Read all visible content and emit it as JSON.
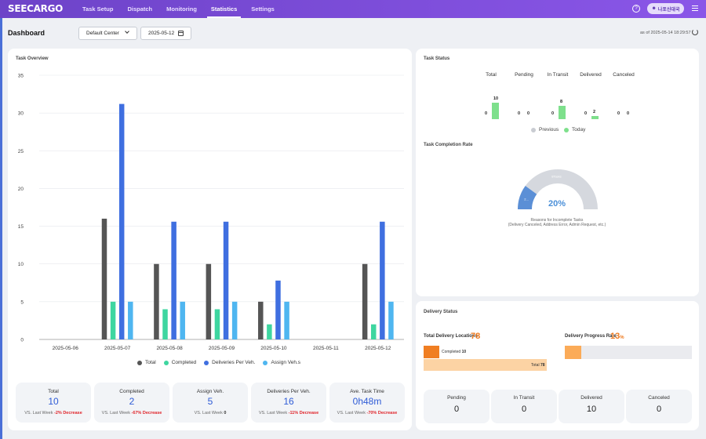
{
  "app": {
    "logo": "SEECARGO"
  },
  "nav": {
    "items": [
      "Task Setup",
      "Dispatch",
      "Monitoring",
      "Statistics",
      "Settings"
    ],
    "active": "Statistics"
  },
  "header": {
    "help_icon": "?",
    "user_label": "나포신대국"
  },
  "toolbar": {
    "title": "Dashboard",
    "center_select": "Default Center",
    "date": "2025-05-12",
    "as_of": "as of 2025-05-14 18:29:57"
  },
  "overview": {
    "title": "Task Overview",
    "legend": [
      "Total",
      "Completed",
      "Deliveries Per Veh.",
      "Assign Veh.s"
    ]
  },
  "chart_data": {
    "type": "bar",
    "title": "Task Overview",
    "categories": [
      "2025-05-06",
      "2025-05-07",
      "2025-05-08",
      "2025-05-09",
      "2025-05-10",
      "2025-05-11",
      "2025-05-12"
    ],
    "series": [
      {
        "name": "Total",
        "color": "#555555",
        "values": [
          0,
          16,
          10,
          10,
          5,
          0,
          10
        ]
      },
      {
        "name": "Completed",
        "color": "#3ed6a0",
        "values": [
          0,
          5,
          4,
          4,
          2,
          0,
          2
        ]
      },
      {
        "name": "Deliveries Per Veh.",
        "color": "#3f6fe0",
        "values": [
          0,
          31.2,
          15.6,
          15.6,
          7.8,
          0,
          15.6
        ]
      },
      {
        "name": "Assign Veh.s",
        "color": "#4fb6f0",
        "values": [
          0,
          5,
          5,
          5,
          5,
          0,
          5
        ]
      }
    ],
    "yticks": [
      0,
      5,
      10,
      15,
      20,
      25,
      30,
      35
    ],
    "ylim": [
      0,
      35
    ],
    "grid": true,
    "legend_position": "bottom"
  },
  "stats": [
    {
      "label": "Total",
      "value": "10",
      "unit": "",
      "cmp_prefix": "VS. Last Week",
      "cmp_value": "-2% Decrease",
      "cmp_red": true
    },
    {
      "label": "Completed",
      "value": "2",
      "unit": "",
      "cmp_prefix": "VS. Last Week",
      "cmp_value": "-67% Decrease",
      "cmp_red": true
    },
    {
      "label": "Assign Veh.",
      "value": "5",
      "unit": "",
      "cmp_prefix": "VS. Last Week",
      "cmp_value": "0",
      "cmp_red": false
    },
    {
      "label": "Deliveries Per Veh.",
      "value": "16",
      "unit": "",
      "cmp_prefix": "VS. Last Week",
      "cmp_value": "-11% Decrease",
      "cmp_red": true
    },
    {
      "label": "Ave. Task Time",
      "value": "0h48m",
      "unit": "",
      "cmp_prefix": "VS. Last Week",
      "cmp_value": "-70% Decrease",
      "cmp_red": true
    }
  ],
  "task_status": {
    "title": "Task Status",
    "columns": [
      {
        "label": "Total",
        "previous": "0",
        "today": "10",
        "today_value": 10
      },
      {
        "label": "Pending",
        "previous": "0",
        "today": "0",
        "today_value": 0
      },
      {
        "label": "In Transit",
        "previous": "0",
        "today": "8",
        "today_value": 8
      },
      {
        "label": "Delivered",
        "previous": "0",
        "today": "2",
        "today_value": 2
      },
      {
        "label": "Canceled",
        "previous": "0",
        "today": "0",
        "today_value": 0
      }
    ],
    "legend_previous": "Previous",
    "legend_today": "Today",
    "color_previous": "#c9ccd2",
    "color_today": "#7ee08c"
  },
  "completion": {
    "title": "Task Completion Rate",
    "percent_label": "20%",
    "percent": 0.2,
    "completed_seg_label": "2...",
    "incomplete_seg_label": "8Tasks",
    "reasons_line1": "Reasons for Incomplete Tasks",
    "reasons_line2": "(Delivery Canceled, Address Error, Admin Request, etc.)"
  },
  "delivery_status": {
    "title": "Delivery Status",
    "locations_label": "Total Delivery Locations",
    "locations_value": "78",
    "completed_label": "Completed",
    "completed_value": "10",
    "total_label": "Total",
    "total_value": "78",
    "completed_fraction": 0.128,
    "progress_label": "Delivery Progress Rate",
    "progress_value": "13",
    "progress_unit": "%",
    "progress_fraction": 0.13,
    "pills": [
      {
        "label": "Pending",
        "value": "0"
      },
      {
        "label": "In Transit",
        "value": "0"
      },
      {
        "label": "Delivered",
        "value": "10"
      },
      {
        "label": "Canceled",
        "value": "0"
      }
    ]
  }
}
